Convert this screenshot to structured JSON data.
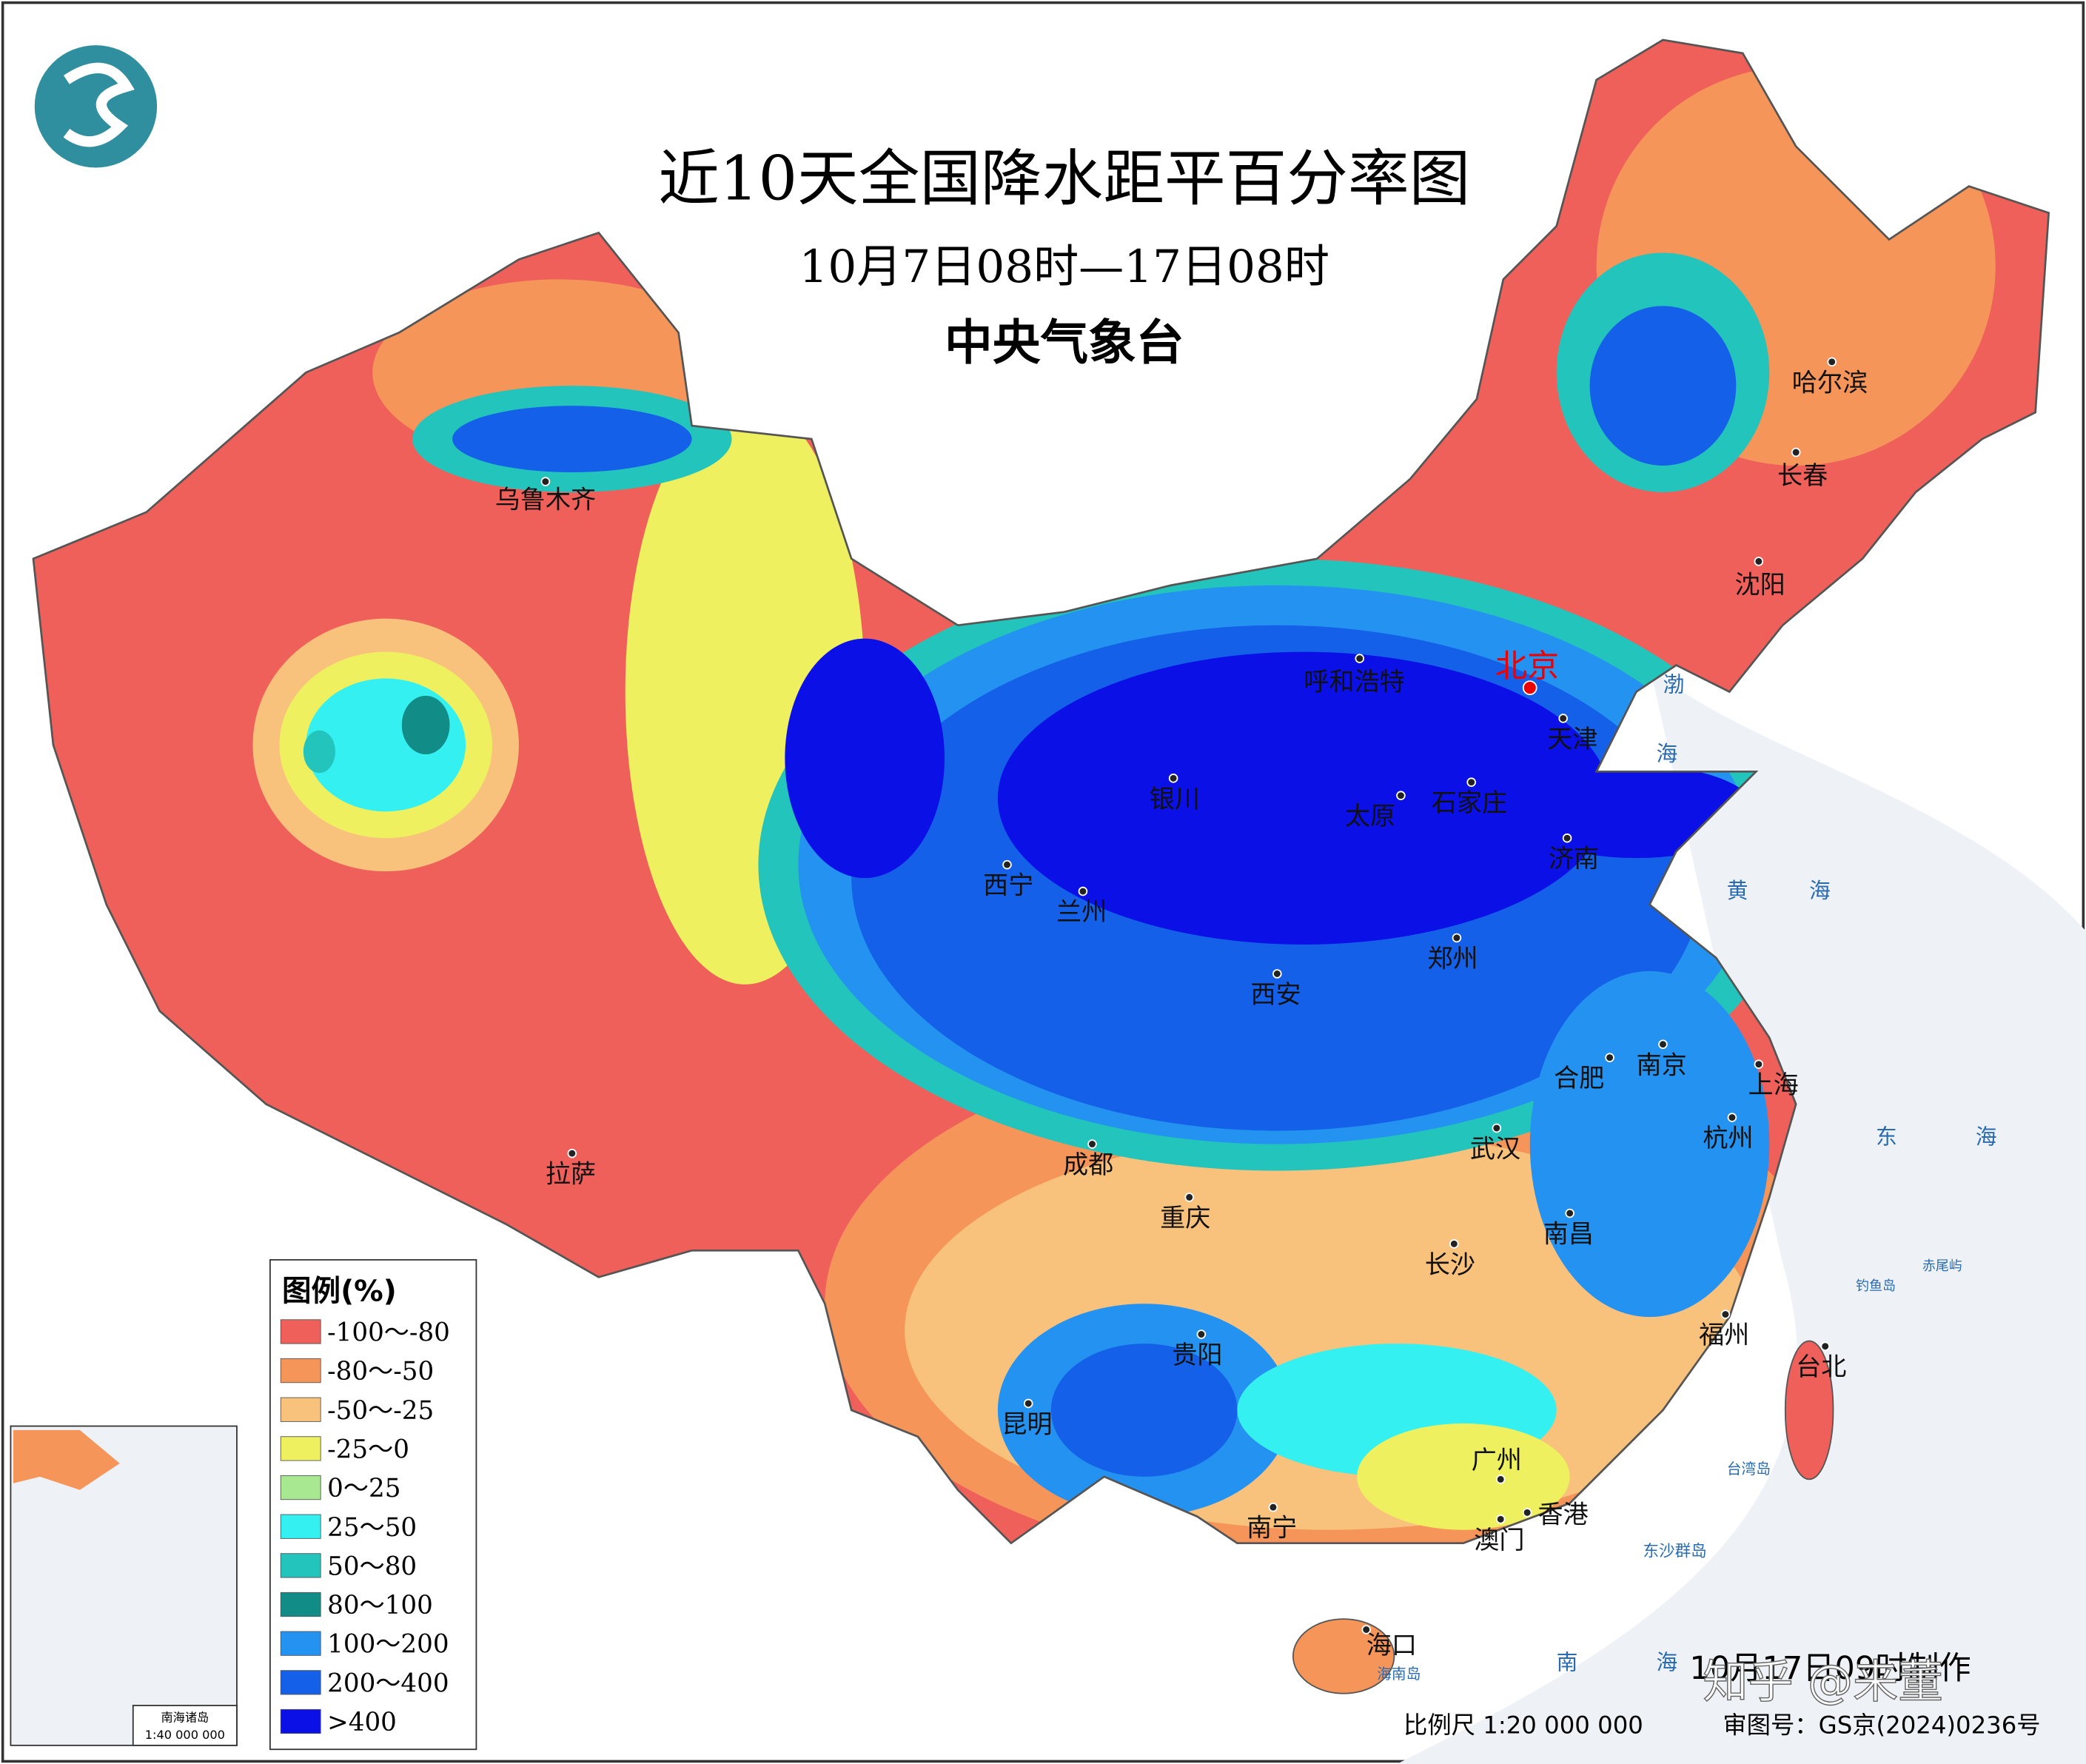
{
  "header": {
    "title": "近10天全国降水距平百分率图",
    "subtitle": "10月7日08时—17日08时",
    "agency": "中央气象台"
  },
  "legend": {
    "title": "图例(%)",
    "items": [
      {
        "label": "-100～-80",
        "color": "#f0605a"
      },
      {
        "label": "-80～-50",
        "color": "#f5955a"
      },
      {
        "label": "-50～-25",
        "color": "#f8c27c"
      },
      {
        "label": "-25～0",
        "color": "#eef060"
      },
      {
        "label": "0～25",
        "color": "#a8e890"
      },
      {
        "label": "25～50",
        "color": "#34f0f0"
      },
      {
        "label": "50～80",
        "color": "#22c4bc"
      },
      {
        "label": "80～100",
        "color": "#128c86"
      },
      {
        "label": "100～200",
        "color": "#2492f0"
      },
      {
        "label": "200～400",
        "color": "#1460e8"
      },
      {
        "label": ">400",
        "color": "#0a10e6"
      }
    ]
  },
  "cities": [
    "乌鲁木齐",
    "哈尔滨",
    "长春",
    "沈阳",
    "呼和浩特",
    "北京",
    "天津",
    "石家庄",
    "太原",
    "银川",
    "济南",
    "西宁",
    "兰州",
    "郑州",
    "西安",
    "合肥",
    "南京",
    "上海",
    "杭州",
    "武汉",
    "成都",
    "重庆",
    "拉萨",
    "长沙",
    "南昌",
    "福州",
    "台北",
    "贵阳",
    "昆明",
    "南宁",
    "广州",
    "澳门",
    "香港",
    "海口"
  ],
  "places": [
    "渤",
    "海",
    "黄",
    "海",
    "东",
    "海",
    "南",
    "海",
    "赤尾屿",
    "钓鱼岛",
    "台湾岛",
    "东沙群岛",
    "海南岛"
  ],
  "inset": {
    "name": "南海诸岛",
    "scale": "1:40 000 000"
  },
  "footer": {
    "scale": "比例尺 1:20 000 000",
    "review": "审图号：GS京(2024)0236号",
    "issued": "10月17日09时制作",
    "watermark": "知乎 @来董"
  }
}
